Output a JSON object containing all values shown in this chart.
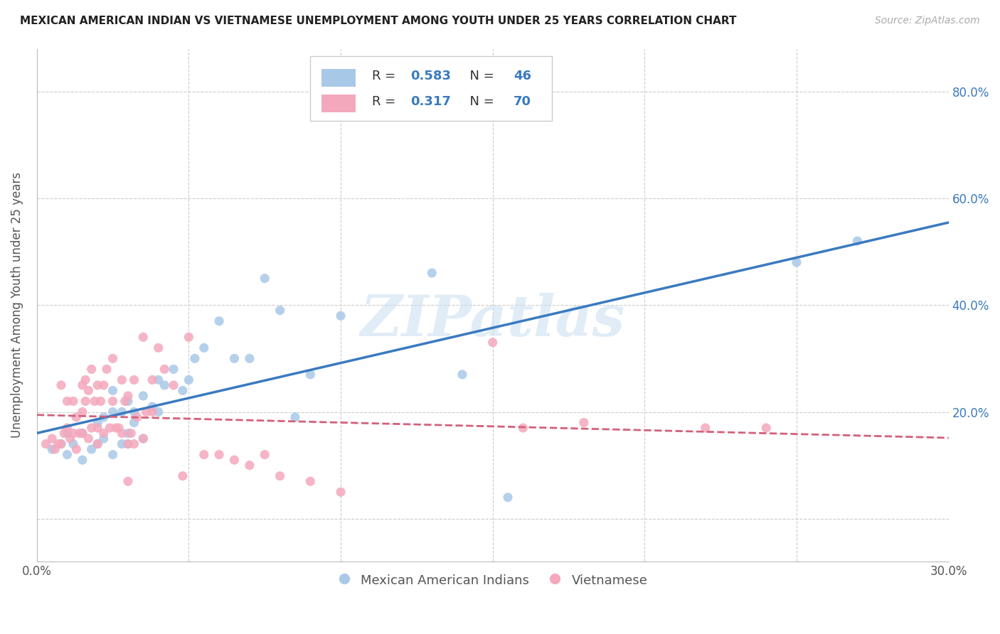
{
  "title": "MEXICAN AMERICAN INDIAN VS VIETNAMESE UNEMPLOYMENT AMONG YOUTH UNDER 25 YEARS CORRELATION CHART",
  "source": "Source: ZipAtlas.com",
  "ylabel": "Unemployment Among Youth under 25 years",
  "xlim": [
    0.0,
    0.3
  ],
  "ylim": [
    -0.08,
    0.88
  ],
  "blue_R": 0.583,
  "blue_N": 46,
  "pink_R": 0.317,
  "pink_N": 70,
  "blue_color": "#a8c8e8",
  "pink_color": "#f4a8bc",
  "blue_line_color": "#3a7abf",
  "pink_line_color": "#d4607a",
  "watermark": "ZIPatlas",
  "legend_label_blue": "Mexican American Indians",
  "legend_label_pink": "Vietnamese",
  "blue_scatter_x": [
    0.005,
    0.008,
    0.01,
    0.01,
    0.012,
    0.015,
    0.015,
    0.018,
    0.02,
    0.02,
    0.022,
    0.022,
    0.025,
    0.025,
    0.025,
    0.028,
    0.028,
    0.03,
    0.03,
    0.03,
    0.032,
    0.032,
    0.035,
    0.035,
    0.038,
    0.04,
    0.04,
    0.042,
    0.045,
    0.048,
    0.05,
    0.052,
    0.055,
    0.06,
    0.065,
    0.07,
    0.075,
    0.08,
    0.085,
    0.09,
    0.1,
    0.13,
    0.14,
    0.155,
    0.25,
    0.27
  ],
  "blue_scatter_y": [
    0.13,
    0.14,
    0.16,
    0.12,
    0.14,
    0.16,
    0.11,
    0.13,
    0.14,
    0.18,
    0.15,
    0.19,
    0.12,
    0.2,
    0.24,
    0.14,
    0.2,
    0.16,
    0.22,
    0.14,
    0.2,
    0.18,
    0.23,
    0.15,
    0.21,
    0.26,
    0.2,
    0.25,
    0.28,
    0.24,
    0.26,
    0.3,
    0.32,
    0.37,
    0.3,
    0.3,
    0.45,
    0.39,
    0.19,
    0.27,
    0.38,
    0.46,
    0.27,
    0.04,
    0.48,
    0.52
  ],
  "pink_scatter_x": [
    0.003,
    0.005,
    0.006,
    0.007,
    0.008,
    0.008,
    0.009,
    0.01,
    0.01,
    0.011,
    0.012,
    0.012,
    0.013,
    0.013,
    0.014,
    0.015,
    0.015,
    0.015,
    0.016,
    0.016,
    0.017,
    0.017,
    0.018,
    0.018,
    0.019,
    0.02,
    0.02,
    0.02,
    0.021,
    0.022,
    0.022,
    0.023,
    0.024,
    0.025,
    0.025,
    0.026,
    0.027,
    0.028,
    0.028,
    0.029,
    0.03,
    0.03,
    0.03,
    0.031,
    0.032,
    0.032,
    0.033,
    0.035,
    0.035,
    0.036,
    0.038,
    0.038,
    0.04,
    0.042,
    0.045,
    0.048,
    0.05,
    0.055,
    0.06,
    0.065,
    0.07,
    0.075,
    0.08,
    0.09,
    0.1,
    0.15,
    0.16,
    0.18,
    0.22,
    0.24
  ],
  "pink_scatter_y": [
    0.14,
    0.15,
    0.13,
    0.14,
    0.25,
    0.14,
    0.16,
    0.17,
    0.22,
    0.15,
    0.16,
    0.22,
    0.13,
    0.19,
    0.16,
    0.25,
    0.2,
    0.16,
    0.26,
    0.22,
    0.15,
    0.24,
    0.28,
    0.17,
    0.22,
    0.17,
    0.25,
    0.14,
    0.22,
    0.25,
    0.16,
    0.28,
    0.17,
    0.22,
    0.3,
    0.17,
    0.17,
    0.26,
    0.16,
    0.22,
    0.23,
    0.14,
    0.07,
    0.16,
    0.14,
    0.26,
    0.19,
    0.34,
    0.15,
    0.2,
    0.26,
    0.2,
    0.32,
    0.28,
    0.25,
    0.08,
    0.34,
    0.12,
    0.12,
    0.11,
    0.1,
    0.12,
    0.08,
    0.07,
    0.05,
    0.33,
    0.17,
    0.18,
    0.17,
    0.17
  ]
}
